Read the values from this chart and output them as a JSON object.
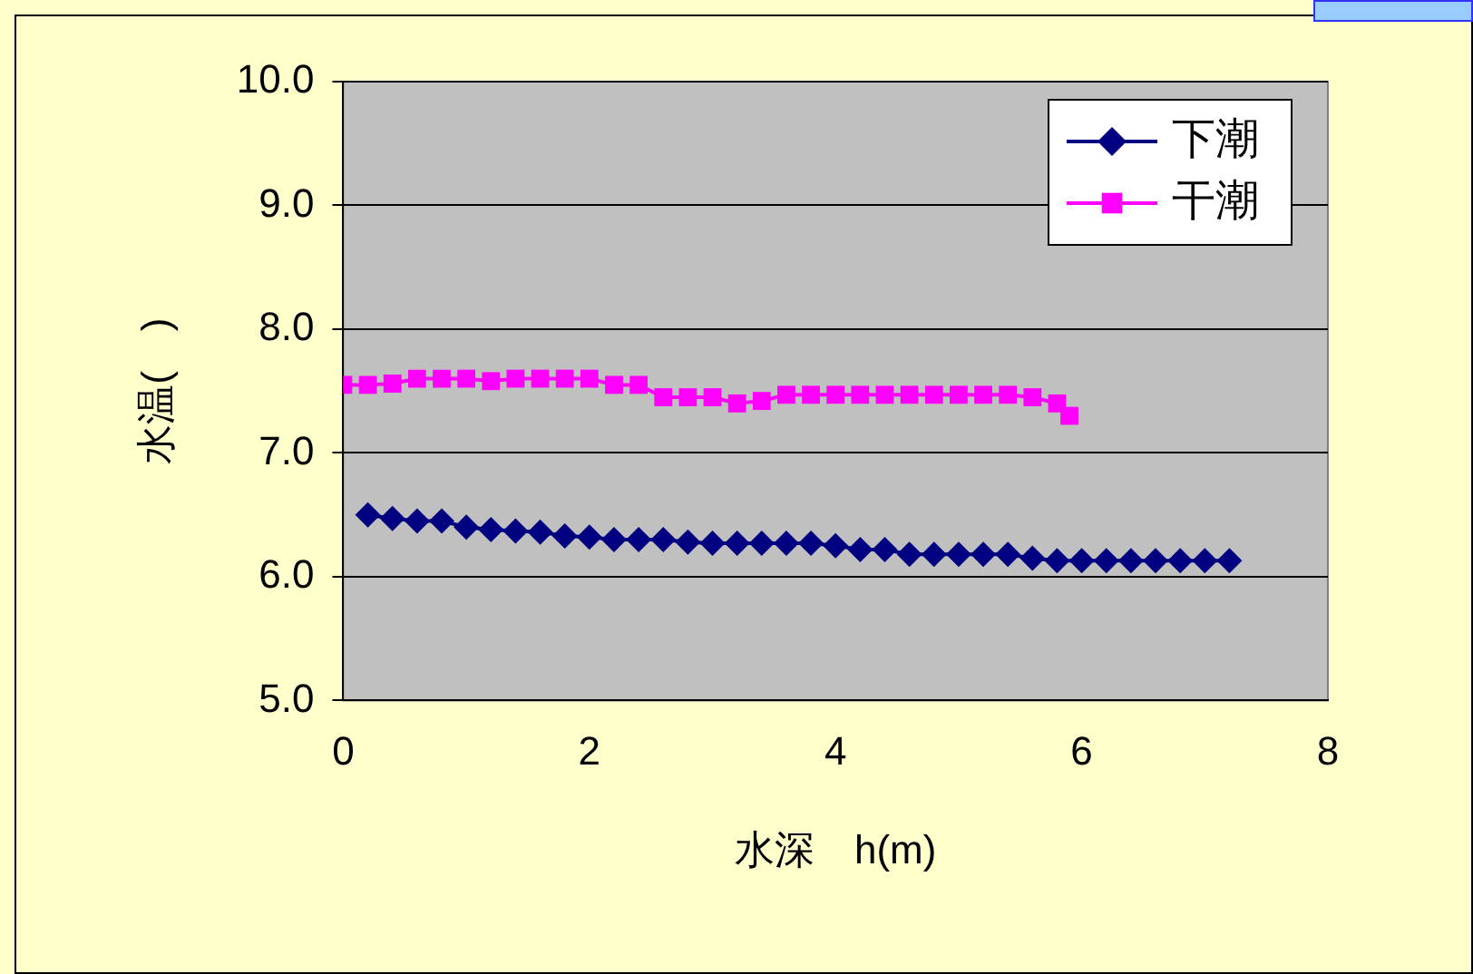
{
  "chart_data": {
    "type": "line",
    "xlabel": "水深　h(m)",
    "ylabel": "水温(　)",
    "xlim": [
      0,
      8
    ],
    "xticks": [
      0,
      2,
      4,
      6,
      8
    ],
    "ylim": [
      5,
      10
    ],
    "yticks": [
      {
        "value": 5,
        "label": "5.0"
      },
      {
        "value": 6,
        "label": "6.0"
      },
      {
        "value": 7,
        "label": "7.0"
      },
      {
        "value": 8,
        "label": "8.0"
      },
      {
        "value": 9,
        "label": "9.0"
      },
      {
        "value": 10,
        "label": "10.0"
      }
    ],
    "grid": "y",
    "legend": "top right",
    "line_style": "solid",
    "series": [
      {
        "name": "下潮",
        "color": "#000080",
        "marker": "diamond",
        "x": [
          0.2,
          0.4,
          0.6,
          0.8,
          1.0,
          1.2,
          1.4,
          1.6,
          1.8,
          2.0,
          2.2,
          2.4,
          2.6,
          2.8,
          3.0,
          3.2,
          3.4,
          3.6,
          3.8,
          4.0,
          4.2,
          4.4,
          4.6,
          4.8,
          5.0,
          5.2,
          5.4,
          5.6,
          5.8,
          6.0,
          6.2,
          6.4,
          6.6,
          6.8,
          7.0,
          7.2
        ],
        "values": [
          6.5,
          6.47,
          6.45,
          6.45,
          6.4,
          6.38,
          6.37,
          6.36,
          6.33,
          6.32,
          6.3,
          6.3,
          6.3,
          6.28,
          6.27,
          6.27,
          6.27,
          6.27,
          6.27,
          6.25,
          6.22,
          6.22,
          6.18,
          6.18,
          6.18,
          6.18,
          6.18,
          6.15,
          6.13,
          6.13,
          6.13,
          6.13,
          6.13,
          6.13,
          6.13,
          6.13
        ]
      },
      {
        "name": "干潮",
        "color": "#ff00ff",
        "marker": "square",
        "x": [
          0.0,
          0.2,
          0.4,
          0.6,
          0.8,
          1.0,
          1.2,
          1.4,
          1.6,
          1.8,
          2.0,
          2.2,
          2.4,
          2.6,
          2.8,
          3.0,
          3.2,
          3.4,
          3.6,
          3.8,
          4.0,
          4.2,
          4.4,
          4.6,
          4.8,
          5.0,
          5.2,
          5.4,
          5.6,
          5.8,
          5.9
        ],
        "values": [
          7.55,
          7.55,
          7.56,
          7.6,
          7.6,
          7.6,
          7.58,
          7.6,
          7.6,
          7.6,
          7.6,
          7.55,
          7.55,
          7.45,
          7.45,
          7.45,
          7.4,
          7.42,
          7.47,
          7.47,
          7.47,
          7.47,
          7.47,
          7.47,
          7.47,
          7.47,
          7.47,
          7.47,
          7.45,
          7.4,
          7.3
        ]
      }
    ]
  }
}
